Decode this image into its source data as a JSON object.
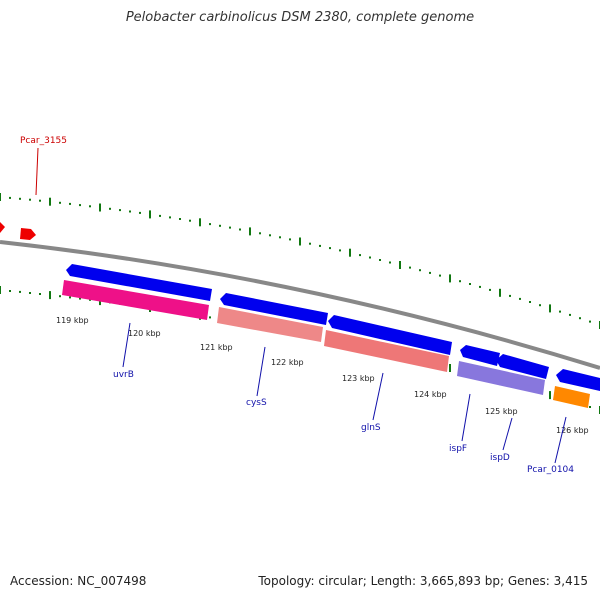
{
  "title": "Pelobacter carbinolicus DSM 2380, complete genome",
  "footer": {
    "accession": "Accession: NC_007498",
    "summary": "Topology: circular; Length: 3,665,893 bp; Genes: 3,415"
  },
  "colors": {
    "backbone": "#888888",
    "tick": "#117711",
    "forward_gene": "#0000ee",
    "uvrB": "#ee1188",
    "cysS": "#ee8888",
    "glnS": "#ee7777",
    "ispF": "#8877dd",
    "ispD": "#8877dd",
    "Pcar_0104": "#ff8800",
    "Pcar_3155": "#ee0000",
    "label_blue": "#1111aa",
    "label_red": "#cc0000"
  },
  "kbp_labels": [
    "119 kbp",
    "120 kbp",
    "121 kbp",
    "122 kbp",
    "123 kbp",
    "124 kbp",
    "125 kbp",
    "126 kbp"
  ],
  "genes": [
    {
      "name": "Pcar_3155",
      "color_key": "label_red"
    },
    {
      "name": "uvrB",
      "color_key": "label_blue"
    },
    {
      "name": "cysS",
      "color_key": "label_blue"
    },
    {
      "name": "glnS",
      "color_key": "label_blue"
    },
    {
      "name": "ispF",
      "color_key": "label_blue"
    },
    {
      "name": "ispD",
      "color_key": "label_blue"
    },
    {
      "name": "Pcar_0104",
      "color_key": "label_blue"
    }
  ]
}
